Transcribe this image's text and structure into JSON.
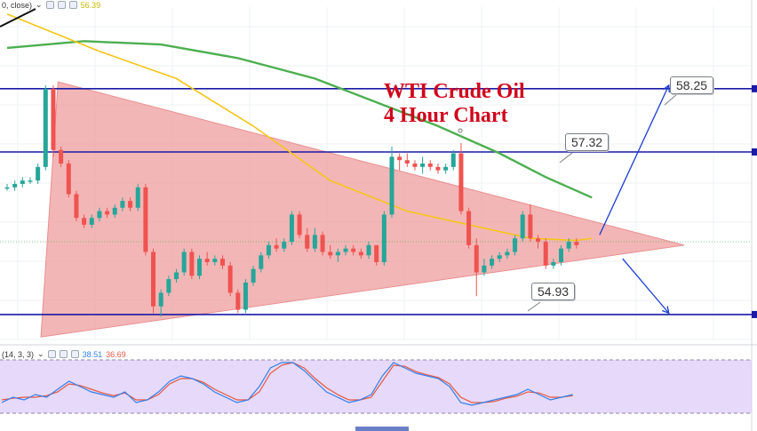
{
  "header": {
    "ma_params": "0, close)",
    "ma_value": "56.39",
    "ma_value_color": "#c9b800"
  },
  "title": {
    "line1": "WTI Crude Oil",
    "line2": "4 Hour Chart",
    "color": "#d0021b"
  },
  "oscillator": {
    "params": "(14, 3, 3)",
    "k_value": "38.51",
    "d_value": "36.69",
    "k_color": "#2f80ed",
    "d_color": "#e8553f"
  },
  "callouts": {
    "upper": "58.25",
    "middle": "57.32",
    "lower": "54.93"
  },
  "colors": {
    "bull": "#26a69a",
    "bear": "#ef5350",
    "triangle": "#ee9a9a",
    "levels": "#1a1aa6",
    "ma_fast": "#f5c518",
    "ma_slow": "#4caf50",
    "osc_band": "#dcc9f7"
  },
  "chart_data": {
    "type": "candlestick",
    "timeframe": "4 Hour",
    "ylim": [
      54.55,
      59.45
    ],
    "levels": [
      58.25,
      57.32,
      54.93
    ],
    "candles": [
      [
        56.8,
        56.85,
        56.75,
        56.8
      ],
      [
        56.8,
        56.9,
        56.75,
        56.85
      ],
      [
        56.85,
        56.95,
        56.8,
        56.9
      ],
      [
        56.9,
        56.95,
        56.85,
        56.9
      ],
      [
        56.9,
        57.15,
        56.85,
        57.1
      ],
      [
        57.1,
        58.3,
        57.05,
        58.25
      ],
      [
        58.25,
        58.3,
        57.25,
        57.35
      ],
      [
        57.35,
        57.4,
        57.1,
        57.15
      ],
      [
        57.15,
        57.2,
        56.65,
        56.7
      ],
      [
        56.7,
        56.75,
        56.3,
        56.35
      ],
      [
        56.35,
        56.4,
        56.2,
        56.25
      ],
      [
        56.25,
        56.4,
        56.2,
        56.35
      ],
      [
        56.35,
        56.5,
        56.3,
        56.45
      ],
      [
        56.45,
        56.5,
        56.35,
        56.4
      ],
      [
        56.4,
        56.55,
        56.35,
        56.5
      ],
      [
        56.5,
        56.65,
        56.45,
        56.6
      ],
      [
        56.6,
        56.65,
        56.45,
        56.5
      ],
      [
        56.5,
        56.85,
        56.45,
        56.8
      ],
      [
        56.8,
        56.85,
        55.8,
        55.85
      ],
      [
        55.85,
        55.9,
        54.95,
        55.05
      ],
      [
        55.05,
        55.3,
        54.9,
        55.25
      ],
      [
        55.25,
        55.5,
        55.2,
        55.45
      ],
      [
        55.45,
        55.6,
        55.4,
        55.55
      ],
      [
        55.55,
        55.9,
        55.5,
        55.85
      ],
      [
        55.85,
        55.9,
        55.45,
        55.5
      ],
      [
        55.5,
        55.8,
        55.45,
        55.75
      ],
      [
        55.75,
        55.85,
        55.65,
        55.7
      ],
      [
        55.7,
        55.8,
        55.65,
        55.75
      ],
      [
        55.75,
        55.8,
        55.6,
        55.65
      ],
      [
        55.65,
        55.7,
        55.2,
        55.25
      ],
      [
        55.25,
        55.3,
        54.95,
        55.0
      ],
      [
        55.0,
        55.45,
        54.95,
        55.4
      ],
      [
        55.4,
        55.65,
        55.35,
        55.6
      ],
      [
        55.6,
        55.85,
        55.55,
        55.8
      ],
      [
        55.8,
        56.0,
        55.75,
        55.95
      ],
      [
        55.95,
        56.05,
        55.85,
        55.9
      ],
      [
        55.9,
        56.05,
        55.85,
        56.0
      ],
      [
        56.0,
        56.45,
        55.95,
        56.4
      ],
      [
        56.4,
        56.45,
        56.05,
        56.1
      ],
      [
        56.1,
        56.2,
        55.85,
        55.9
      ],
      [
        55.9,
        56.2,
        55.85,
        56.1
      ],
      [
        56.1,
        56.15,
        55.8,
        55.85
      ],
      [
        55.85,
        55.95,
        55.75,
        55.8
      ],
      [
        55.8,
        55.9,
        55.7,
        55.85
      ],
      [
        55.85,
        55.95,
        55.8,
        55.9
      ],
      [
        55.9,
        55.95,
        55.8,
        55.85
      ],
      [
        55.85,
        55.9,
        55.75,
        55.8
      ],
      [
        55.8,
        56.0,
        55.75,
        55.95
      ],
      [
        55.95,
        55.95,
        55.65,
        55.7
      ],
      [
        55.7,
        56.45,
        55.65,
        56.4
      ],
      [
        56.4,
        57.4,
        56.35,
        57.25
      ],
      [
        57.25,
        57.3,
        57.05,
        57.2
      ],
      [
        57.2,
        57.3,
        57.1,
        57.15
      ],
      [
        57.15,
        57.2,
        57.05,
        57.1
      ],
      [
        57.1,
        57.25,
        57.0,
        57.15
      ],
      [
        57.15,
        57.2,
        57.05,
        57.1
      ],
      [
        57.1,
        57.15,
        57.0,
        57.05
      ],
      [
        57.05,
        57.15,
        57.0,
        57.1
      ],
      [
        57.1,
        57.35,
        57.05,
        57.3
      ],
      [
        57.3,
        57.45,
        56.4,
        56.45
      ],
      [
        56.45,
        56.5,
        55.9,
        55.95
      ],
      [
        55.95,
        56.05,
        55.2,
        55.55
      ],
      [
        55.55,
        55.75,
        55.5,
        55.65
      ],
      [
        55.65,
        55.8,
        55.6,
        55.75
      ],
      [
        55.75,
        55.85,
        55.7,
        55.8
      ],
      [
        55.8,
        55.9,
        55.75,
        55.85
      ],
      [
        55.85,
        56.1,
        55.8,
        56.05
      ],
      [
        56.05,
        56.45,
        56.0,
        56.4
      ],
      [
        56.4,
        56.55,
        56.0,
        56.05
      ],
      [
        56.05,
        56.1,
        55.9,
        56.0
      ],
      [
        56.0,
        56.05,
        55.6,
        55.65
      ],
      [
        55.65,
        55.75,
        55.6,
        55.7
      ],
      [
        55.7,
        55.95,
        55.65,
        55.9
      ],
      [
        55.9,
        56.05,
        55.85,
        56.0
      ],
      [
        56.0,
        56.05,
        55.9,
        55.95
      ]
    ],
    "ma_fast": [
      [
        0,
        59.35
      ],
      [
        12,
        58.8
      ],
      [
        22,
        58.4
      ],
      [
        32,
        57.7
      ],
      [
        42,
        56.9
      ],
      [
        52,
        56.45
      ],
      [
        60,
        56.25
      ],
      [
        68,
        56.05
      ],
      [
        74,
        56.02
      ],
      [
        76,
        56.05
      ]
    ],
    "ma_slow": [
      [
        0,
        58.85
      ],
      [
        10,
        58.95
      ],
      [
        20,
        58.9
      ],
      [
        30,
        58.7
      ],
      [
        40,
        58.4
      ],
      [
        48,
        58.05
      ],
      [
        56,
        57.7
      ],
      [
        64,
        57.3
      ],
      [
        70,
        56.95
      ],
      [
        76,
        56.65
      ]
    ],
    "triangle": {
      "apex": [
        88,
        55.95
      ],
      "top_left": [
        2,
        58.35
      ],
      "bottom_left": [
        0,
        54.6
      ]
    },
    "projections": [
      {
        "from": [
          77,
          56.1
        ],
        "to": [
          86,
          58.3
        ]
      },
      {
        "from": [
          80,
          55.75
        ],
        "to": [
          86,
          54.95
        ]
      }
    ],
    "oscillator": {
      "ylim": [
        0,
        100
      ],
      "k": [
        20,
        30,
        25,
        35,
        30,
        45,
        60,
        50,
        40,
        35,
        30,
        40,
        20,
        25,
        40,
        60,
        70,
        65,
        55,
        40,
        30,
        20,
        25,
        50,
        85,
        95,
        95,
        80,
        60,
        40,
        30,
        20,
        25,
        35,
        70,
        95,
        85,
        75,
        70,
        65,
        50,
        20,
        15,
        20,
        25,
        30,
        35,
        45,
        35,
        25,
        30,
        35
      ],
      "d": [
        25,
        28,
        30,
        30,
        33,
        40,
        55,
        52,
        45,
        38,
        33,
        38,
        25,
        25,
        35,
        55,
        65,
        65,
        58,
        45,
        35,
        25,
        25,
        40,
        75,
        90,
        95,
        85,
        65,
        48,
        35,
        25,
        25,
        30,
        60,
        90,
        88,
        78,
        72,
        67,
        55,
        30,
        20,
        20,
        22,
        28,
        32,
        40,
        38,
        30,
        30,
        33
      ]
    }
  }
}
